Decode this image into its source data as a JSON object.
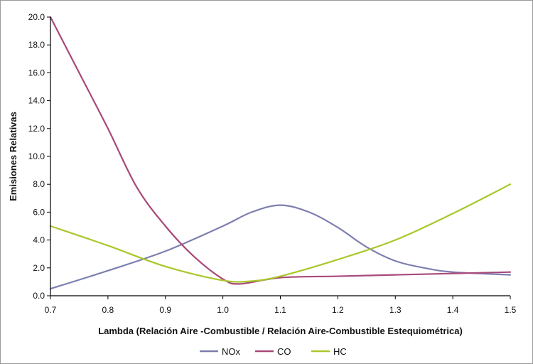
{
  "chart_data": {
    "type": "line",
    "xlabel": "Lambda (Relación Aire -Combustible / Relación Aire-Combustible Estequiométrica)",
    "ylabel": "Emisiones Relativas",
    "xlim": [
      0.7,
      1.5
    ],
    "ylim": [
      0,
      20
    ],
    "x_ticks": [
      "0.7",
      "0.8",
      "0.9",
      "1.0",
      "1.1",
      "1.2",
      "1.3",
      "1.4",
      "1.5"
    ],
    "y_ticks": [
      "0.0",
      "2.0",
      "4.0",
      "6.0",
      "8.0",
      "10.0",
      "12.0",
      "14.0",
      "16.0",
      "18.0",
      "20.0"
    ],
    "grid": false,
    "legend_position": "bottom",
    "series": [
      {
        "name": "NOx",
        "color": "#7d7fb0",
        "points": [
          [
            0.7,
            0.5
          ],
          [
            0.8,
            1.8
          ],
          [
            0.9,
            3.2
          ],
          [
            1.0,
            5.0
          ],
          [
            1.05,
            6.0
          ],
          [
            1.1,
            6.5
          ],
          [
            1.15,
            6.0
          ],
          [
            1.2,
            4.9
          ],
          [
            1.25,
            3.5
          ],
          [
            1.3,
            2.5
          ],
          [
            1.35,
            2.0
          ],
          [
            1.4,
            1.7
          ],
          [
            1.5,
            1.5
          ]
        ]
      },
      {
        "name": "CO",
        "color": "#a8497a",
        "points": [
          [
            0.7,
            20.0
          ],
          [
            0.75,
            16.0
          ],
          [
            0.8,
            12.0
          ],
          [
            0.85,
            7.8
          ],
          [
            0.9,
            5.0
          ],
          [
            0.95,
            2.8
          ],
          [
            1.0,
            1.2
          ],
          [
            1.03,
            0.85
          ],
          [
            1.1,
            1.3
          ],
          [
            1.2,
            1.4
          ],
          [
            1.3,
            1.5
          ],
          [
            1.4,
            1.6
          ],
          [
            1.5,
            1.7
          ]
        ]
      },
      {
        "name": "HC",
        "color": "#a8c82a",
        "points": [
          [
            0.7,
            5.0
          ],
          [
            0.8,
            3.6
          ],
          [
            0.9,
            2.1
          ],
          [
            1.0,
            1.1
          ],
          [
            1.05,
            1.05
          ],
          [
            1.1,
            1.4
          ],
          [
            1.2,
            2.6
          ],
          [
            1.3,
            4.0
          ],
          [
            1.4,
            5.9
          ],
          [
            1.5,
            8.0
          ]
        ]
      }
    ]
  }
}
